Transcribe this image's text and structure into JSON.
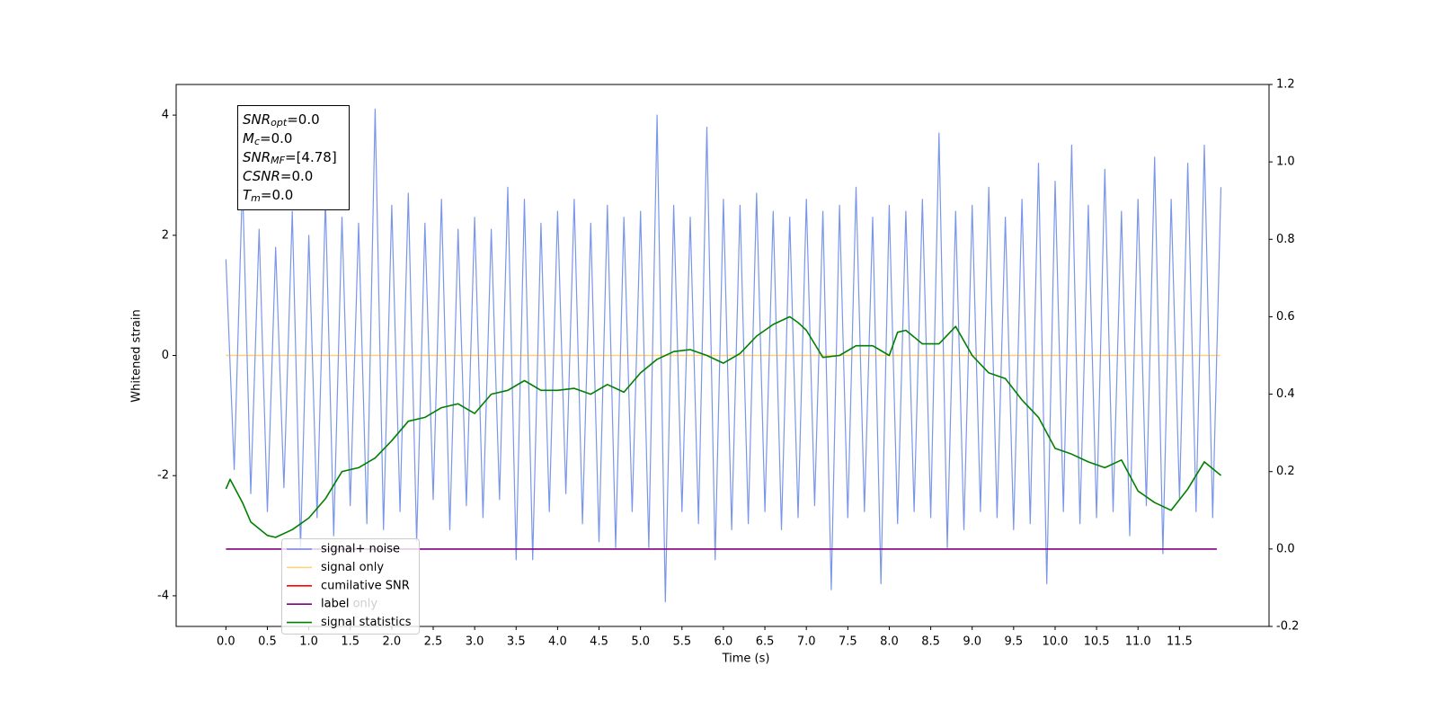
{
  "chart_data": {
    "type": "line",
    "xlabel": "Time (s)",
    "ylabel": "Whitened strain",
    "xlim": [
      -0.6,
      12.58
    ],
    "ylim": [
      -4.51,
      4.51
    ],
    "y2lim": [
      -0.2,
      1.2
    ],
    "xticks": [
      {
        "value": 0,
        "label": "0.0"
      },
      0.5,
      {
        "value": 1,
        "label": "1.0"
      },
      1.5,
      {
        "value": 2,
        "label": "2.0"
      },
      2.5,
      {
        "value": 3,
        "label": "3.0"
      },
      3.5,
      {
        "value": 4,
        "label": "4.0"
      },
      4.5,
      {
        "value": 5,
        "label": "5.0"
      },
      5.5,
      {
        "value": 6,
        "label": "6.0"
      },
      6.5,
      {
        "value": 7,
        "label": "7.0"
      },
      7.5,
      {
        "value": 8,
        "label": "8.0"
      },
      8.5,
      {
        "value": 9,
        "label": "9.0"
      },
      9.5,
      {
        "value": 10,
        "label": "10.0"
      },
      10.5,
      {
        "value": 11,
        "label": "11.0"
      },
      11.5
    ],
    "yticks": [
      -4,
      -2,
      0,
      2,
      4
    ],
    "y2ticks": [
      -0.2,
      {
        "value": 0,
        "label": "0.0"
      },
      0.2,
      0.4,
      0.6,
      0.8,
      {
        "value": 1,
        "label": "1.0"
      },
      1.2
    ],
    "legend": "lower left",
    "info_box": [
      {
        "symbol": "SNR",
        "sub": "opt",
        "rest": "=0.0"
      },
      {
        "symbol": "M",
        "sub": "c",
        "rest": "=0.0"
      },
      {
        "symbol": "SNR",
        "sub": "MF",
        "rest": "=[4.78]"
      },
      {
        "symbol": "CSNR",
        "rest": "=0.0"
      },
      {
        "symbol": "T",
        "sub": "m",
        "rest": "=0.0"
      }
    ],
    "annotations": [
      "label only"
    ],
    "series": [
      {
        "name": "signal+ noise",
        "color": "#4169e1",
        "opacity": 0.7,
        "x": [
          0,
          0.1,
          0.2,
          0.3,
          0.4,
          0.5,
          0.6,
          0.7,
          0.8,
          0.9,
          1,
          1.1,
          1.2,
          1.3,
          1.4,
          1.5,
          1.6,
          1.7,
          1.8,
          1.9,
          2,
          2.1,
          2.2,
          2.3,
          2.4,
          2.5,
          2.6,
          2.7,
          2.8,
          2.9,
          3,
          3.1,
          3.2,
          3.3,
          3.4,
          3.5,
          3.6,
          3.7,
          3.8,
          3.9,
          4,
          4.1,
          4.2,
          4.3,
          4.4,
          4.5,
          4.6,
          4.7,
          4.8,
          4.9,
          5,
          5.1,
          5.2,
          5.3,
          5.4,
          5.5,
          5.6,
          5.7,
          5.8,
          5.9,
          6,
          6.1,
          6.2,
          6.3,
          6.4,
          6.5,
          6.6,
          6.7,
          6.8,
          6.9,
          7,
          7.1,
          7.2,
          7.3,
          7.4,
          7.5,
          7.6,
          7.7,
          7.8,
          7.9,
          8,
          8.1,
          8.2,
          8.3,
          8.4,
          8.5,
          8.6,
          8.7,
          8.8,
          8.9,
          9,
          9.1,
          9.2,
          9.3,
          9.4,
          9.5,
          9.6,
          9.7,
          9.8,
          9.9,
          10,
          10.1,
          10.2,
          10.3,
          10.4,
          10.5,
          10.6,
          10.7,
          10.8,
          10.9,
          11,
          11.1,
          11.2,
          11.3,
          11.4,
          11.5,
          11.6,
          11.7,
          11.8,
          11.9,
          12
        ],
        "values": [
          1.6,
          -1.9,
          2.9,
          -2.3,
          2.1,
          -2.6,
          1.8,
          -2.2,
          2.4,
          -3.2,
          2.0,
          -2.7,
          2.6,
          -3.0,
          2.3,
          -2.5,
          2.2,
          -2.8,
          4.1,
          -2.9,
          2.5,
          -2.6,
          2.7,
          -3.1,
          2.2,
          -2.4,
          2.6,
          -2.9,
          2.1,
          -2.5,
          2.3,
          -2.7,
          2.1,
          -2.4,
          2.8,
          -3.4,
          2.6,
          -3.4,
          2.2,
          -2.6,
          2.4,
          -2.3,
          2.6,
          -2.8,
          2.2,
          -3.1,
          2.5,
          -3.2,
          2.3,
          -2.6,
          2.4,
          -3.2,
          4.0,
          -4.1,
          2.5,
          -2.6,
          2.3,
          -2.8,
          3.8,
          -3.4,
          2.6,
          -2.9,
          2.5,
          -2.8,
          2.7,
          -2.6,
          2.4,
          -2.9,
          2.3,
          -2.7,
          2.6,
          -2.5,
          2.4,
          -3.9,
          2.5,
          -2.7,
          2.8,
          -2.6,
          2.3,
          -3.8,
          2.5,
          -2.8,
          2.4,
          -2.6,
          2.6,
          -2.7,
          3.7,
          -3.2,
          2.4,
          -2.9,
          2.5,
          -2.6,
          2.8,
          -2.7,
          2.3,
          -2.9,
          2.6,
          -2.8,
          3.2,
          -3.8,
          2.9,
          -2.6,
          3.5,
          -2.8,
          2.5,
          -2.7,
          3.1,
          -2.6,
          2.4,
          -3.0,
          2.6,
          -2.5,
          3.3,
          -3.3,
          2.6,
          -2.4,
          3.2,
          -2.6,
          3.5,
          -2.7,
          2.8
        ]
      },
      {
        "name": "signal only",
        "color": "orange",
        "opacity": 0.5,
        "x": [
          0,
          11.99
        ],
        "values": [
          0,
          0
        ]
      },
      {
        "name": "cumilative SNR",
        "color": "red",
        "x": [],
        "values": []
      },
      {
        "name": "label",
        "color": "purple",
        "axis": "y2",
        "x": [
          0,
          11.95
        ],
        "values": [
          0,
          0
        ]
      },
      {
        "name": "signal statistics",
        "color": "green",
        "axis": "y2",
        "x": [
          0,
          0.05,
          0.2,
          0.3,
          0.5,
          0.6,
          0.8,
          1,
          1.2,
          1.4,
          1.6,
          1.8,
          2,
          2.2,
          2.4,
          2.6,
          2.8,
          3,
          3.2,
          3.4,
          3.6,
          3.8,
          4,
          4.2,
          4.4,
          4.6,
          4.8,
          5,
          5.2,
          5.4,
          5.6,
          5.8,
          6,
          6.2,
          6.4,
          6.6,
          6.8,
          6.9,
          7,
          7.2,
          7.4,
          7.6,
          7.8,
          8,
          8.1,
          8.2,
          8.4,
          8.6,
          8.8,
          9,
          9.2,
          9.4,
          9.6,
          9.8,
          10,
          10.2,
          10.4,
          10.6,
          10.8,
          11,
          11.2,
          11.4,
          11.6,
          11.8,
          12
        ],
        "values": [
          0.155,
          0.18,
          0.12,
          0.07,
          0.035,
          0.03,
          0.05,
          0.08,
          0.13,
          0.2,
          0.21,
          0.235,
          0.28,
          0.33,
          0.34,
          0.365,
          0.375,
          0.35,
          0.4,
          0.41,
          0.435,
          0.41,
          0.41,
          0.415,
          0.4,
          0.425,
          0.405,
          0.455,
          0.49,
          0.51,
          0.515,
          0.5,
          0.48,
          0.505,
          0.55,
          0.58,
          0.6,
          0.585,
          0.565,
          0.495,
          0.5,
          0.525,
          0.525,
          0.5,
          0.56,
          0.565,
          0.53,
          0.53,
          0.575,
          0.5,
          0.455,
          0.44,
          0.385,
          0.34,
          0.26,
          0.245,
          0.225,
          0.21,
          0.23,
          0.15,
          0.12,
          0.1,
          0.155,
          0.225,
          0.19
        ]
      }
    ]
  }
}
